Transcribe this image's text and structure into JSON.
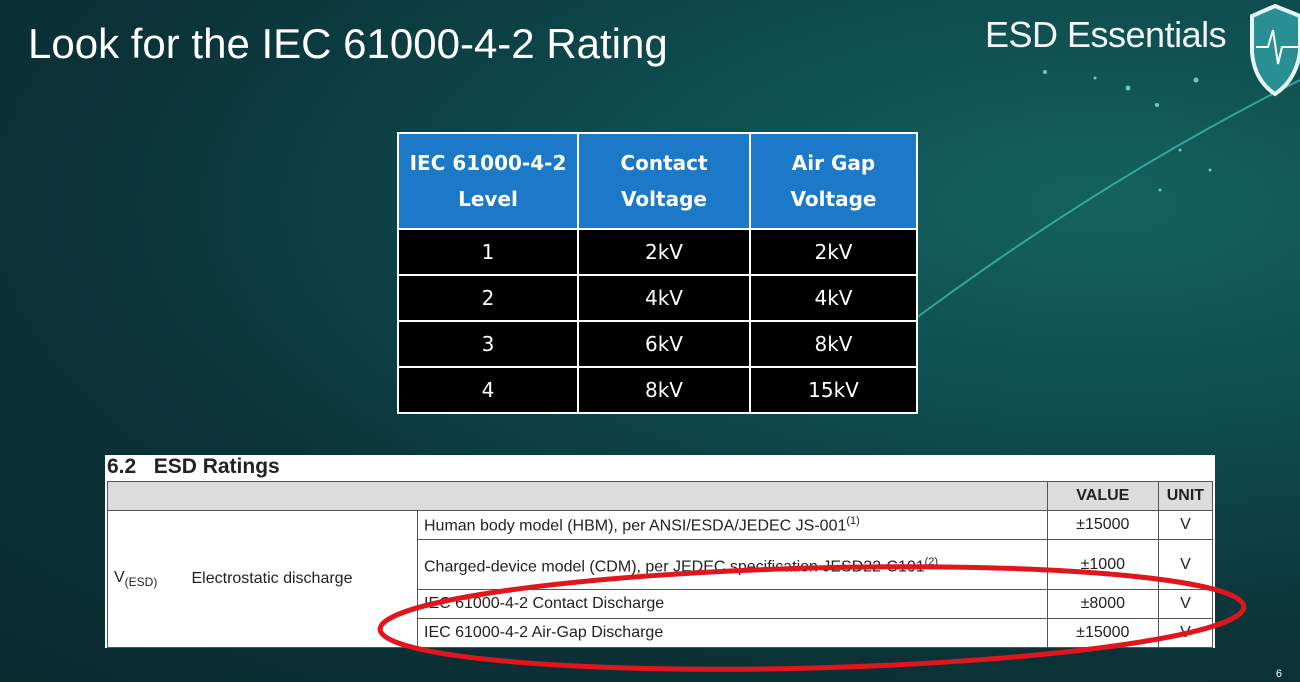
{
  "slide": {
    "title": "Look for the IEC 61000-4-2 Rating",
    "brand": "ESD Essentials",
    "page_number": "6",
    "logo_icon": "shield-heartbeat-icon"
  },
  "iec_table": {
    "headers": [
      [
        "IEC 61000-4-2",
        "Level"
      ],
      [
        "Contact",
        "Voltage"
      ],
      [
        "Air Gap",
        "Voltage"
      ]
    ],
    "rows": [
      [
        "1",
        "2kV",
        "2kV"
      ],
      [
        "2",
        "4kV",
        "4kV"
      ],
      [
        "3",
        "6kV",
        "8kV"
      ],
      [
        "4",
        "8kV",
        "15kV"
      ]
    ]
  },
  "esd_ratings": {
    "section_title": "6.2   ESD Ratings",
    "headers": {
      "value": "VALUE",
      "unit": "UNIT"
    },
    "symbol": "V",
    "symbol_sub": "(ESD)",
    "parameter": "Electrostatic discharge",
    "rows": [
      {
        "desc": "Human body model (HBM), per ANSI/ESDA/JEDEC JS-001",
        "note": "(1)",
        "value": "±15000",
        "unit": "V"
      },
      {
        "desc": "Charged-device model (CDM), per JEDEC specification JESD22-C101",
        "note": "(2)",
        "value": "±1000",
        "unit": "V"
      },
      {
        "desc": "IEC 61000-4-2 Contact Discharge",
        "note": "",
        "value": "±8000",
        "unit": "V"
      },
      {
        "desc": "IEC 61000-4-2 Air-Gap Discharge",
        "note": "",
        "value": "±15000",
        "unit": "V"
      }
    ]
  },
  "annotation": {
    "color": "#e0161c",
    "shape": "ellipse"
  }
}
